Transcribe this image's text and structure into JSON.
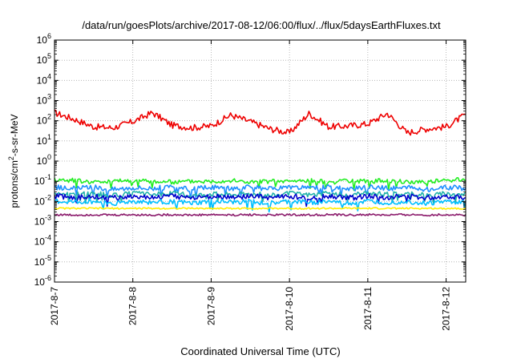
{
  "chart_data": {
    "type": "line",
    "title": "/data/run/goesPlots/archive/2017-08-12/06:00/flux/../flux/5daysEarthFluxes.txt",
    "xlabel": "Coordinated Universal Time (UTC)",
    "ylabel": {
      "prefix": "protons/cm",
      "superscript": "2",
      "suffix": "-s-sr-MeV"
    },
    "yscale": "log",
    "ylim_exponents": [
      -6,
      6
    ],
    "y_tick_base": "10",
    "y_tick_exponents": [
      "-6",
      "-5",
      "-4",
      "-3",
      "-2",
      "-1",
      "0",
      "1",
      "2",
      "3",
      "4",
      "5",
      "6"
    ],
    "xlim": [
      "2017-08-07",
      "2017-08-12T06:00"
    ],
    "x_tick_labels": [
      "2017-8-7",
      "2017-8-8",
      "2017-8-9",
      "2017-8-10",
      "2017-8-11",
      "2017-8-12"
    ],
    "x_tick_dates": [
      "2017-08-07",
      "2017-08-08",
      "2017-08-09",
      "2017-08-10",
      "2017-08-11",
      "2017-08-12"
    ],
    "grid": true,
    "x_dates": [
      "2017-08-07T00:00",
      "2017-08-07T06:00",
      "2017-08-07T12:00",
      "2017-08-07T18:00",
      "2017-08-08T00:00",
      "2017-08-08T06:00",
      "2017-08-08T12:00",
      "2017-08-08T18:00",
      "2017-08-09T00:00",
      "2017-08-09T06:00",
      "2017-08-09T12:00",
      "2017-08-09T18:00",
      "2017-08-10T00:00",
      "2017-08-10T06:00",
      "2017-08-10T12:00",
      "2017-08-10T18:00",
      "2017-08-11T00:00",
      "2017-08-11T06:00",
      "2017-08-11T12:00",
      "2017-08-11T18:00",
      "2017-08-12T00:00",
      "2017-08-12T06:00"
    ],
    "series": [
      {
        "color": "#ee0000",
        "values": [
          250,
          120,
          50,
          45,
          90,
          250,
          60,
          45,
          55,
          190,
          90,
          40,
          25,
          230,
          50,
          55,
          70,
          230,
          25,
          40,
          50,
          200
        ]
      },
      {
        "color": "#22ee22",
        "values": [
          0.12,
          0.11,
          0.09,
          0.1,
          0.11,
          0.1,
          0.09,
          0.1,
          0.1,
          0.11,
          0.09,
          0.1,
          0.1,
          0.11,
          0.09,
          0.1,
          0.1,
          0.11,
          0.09,
          0.1,
          0.11,
          0.12
        ]
      },
      {
        "color": "#1e90ff",
        "values": [
          0.05,
          0.045,
          0.05,
          0.04,
          0.05,
          0.045,
          0.05,
          0.04,
          0.05,
          0.045,
          0.05,
          0.04,
          0.05,
          0.045,
          0.05,
          0.04,
          0.05,
          0.045,
          0.05,
          0.04,
          0.05,
          0.045
        ]
      },
      {
        "color": "#20b2aa",
        "values": [
          0.025,
          0.022,
          0.025,
          0.02,
          0.025,
          0.022,
          0.025,
          0.02,
          0.025,
          0.022,
          0.025,
          0.02,
          0.025,
          0.022,
          0.025,
          0.02,
          0.025,
          0.022,
          0.025,
          0.02,
          0.025,
          0.022
        ]
      },
      {
        "color": "#0000cc",
        "values": [
          0.018,
          0.016,
          0.018,
          0.015,
          0.018,
          0.016,
          0.018,
          0.015,
          0.018,
          0.016,
          0.018,
          0.015,
          0.018,
          0.016,
          0.018,
          0.015,
          0.018,
          0.016,
          0.018,
          0.015,
          0.018,
          0.016
        ]
      },
      {
        "color": "#00bfff",
        "values": [
          0.01,
          0.009,
          0.01,
          0.008,
          0.01,
          0.009,
          0.01,
          0.008,
          0.01,
          0.009,
          0.01,
          0.008,
          0.01,
          0.009,
          0.01,
          0.008,
          0.01,
          0.009,
          0.01,
          0.008,
          0.01,
          0.009
        ]
      },
      {
        "color": "#ffee00",
        "values": [
          0.0045,
          0.0045,
          0.0045,
          0.0045,
          0.0045,
          0.0045,
          0.0045,
          0.0045,
          0.0045,
          0.0045,
          0.0045,
          0.0045,
          0.0045,
          0.0045,
          0.0045,
          0.0045,
          0.0045,
          0.0045,
          0.0045,
          0.0045,
          0.0045,
          0.0045
        ]
      },
      {
        "color": "#8b1a6b",
        "values": [
          0.0022,
          0.0021,
          0.0022,
          0.0021,
          0.0022,
          0.0021,
          0.0022,
          0.0021,
          0.0022,
          0.0021,
          0.0022,
          0.0021,
          0.0022,
          0.0021,
          0.0022,
          0.0021,
          0.0022,
          0.0021,
          0.0022,
          0.0021,
          0.0022,
          0.0021
        ]
      }
    ]
  }
}
